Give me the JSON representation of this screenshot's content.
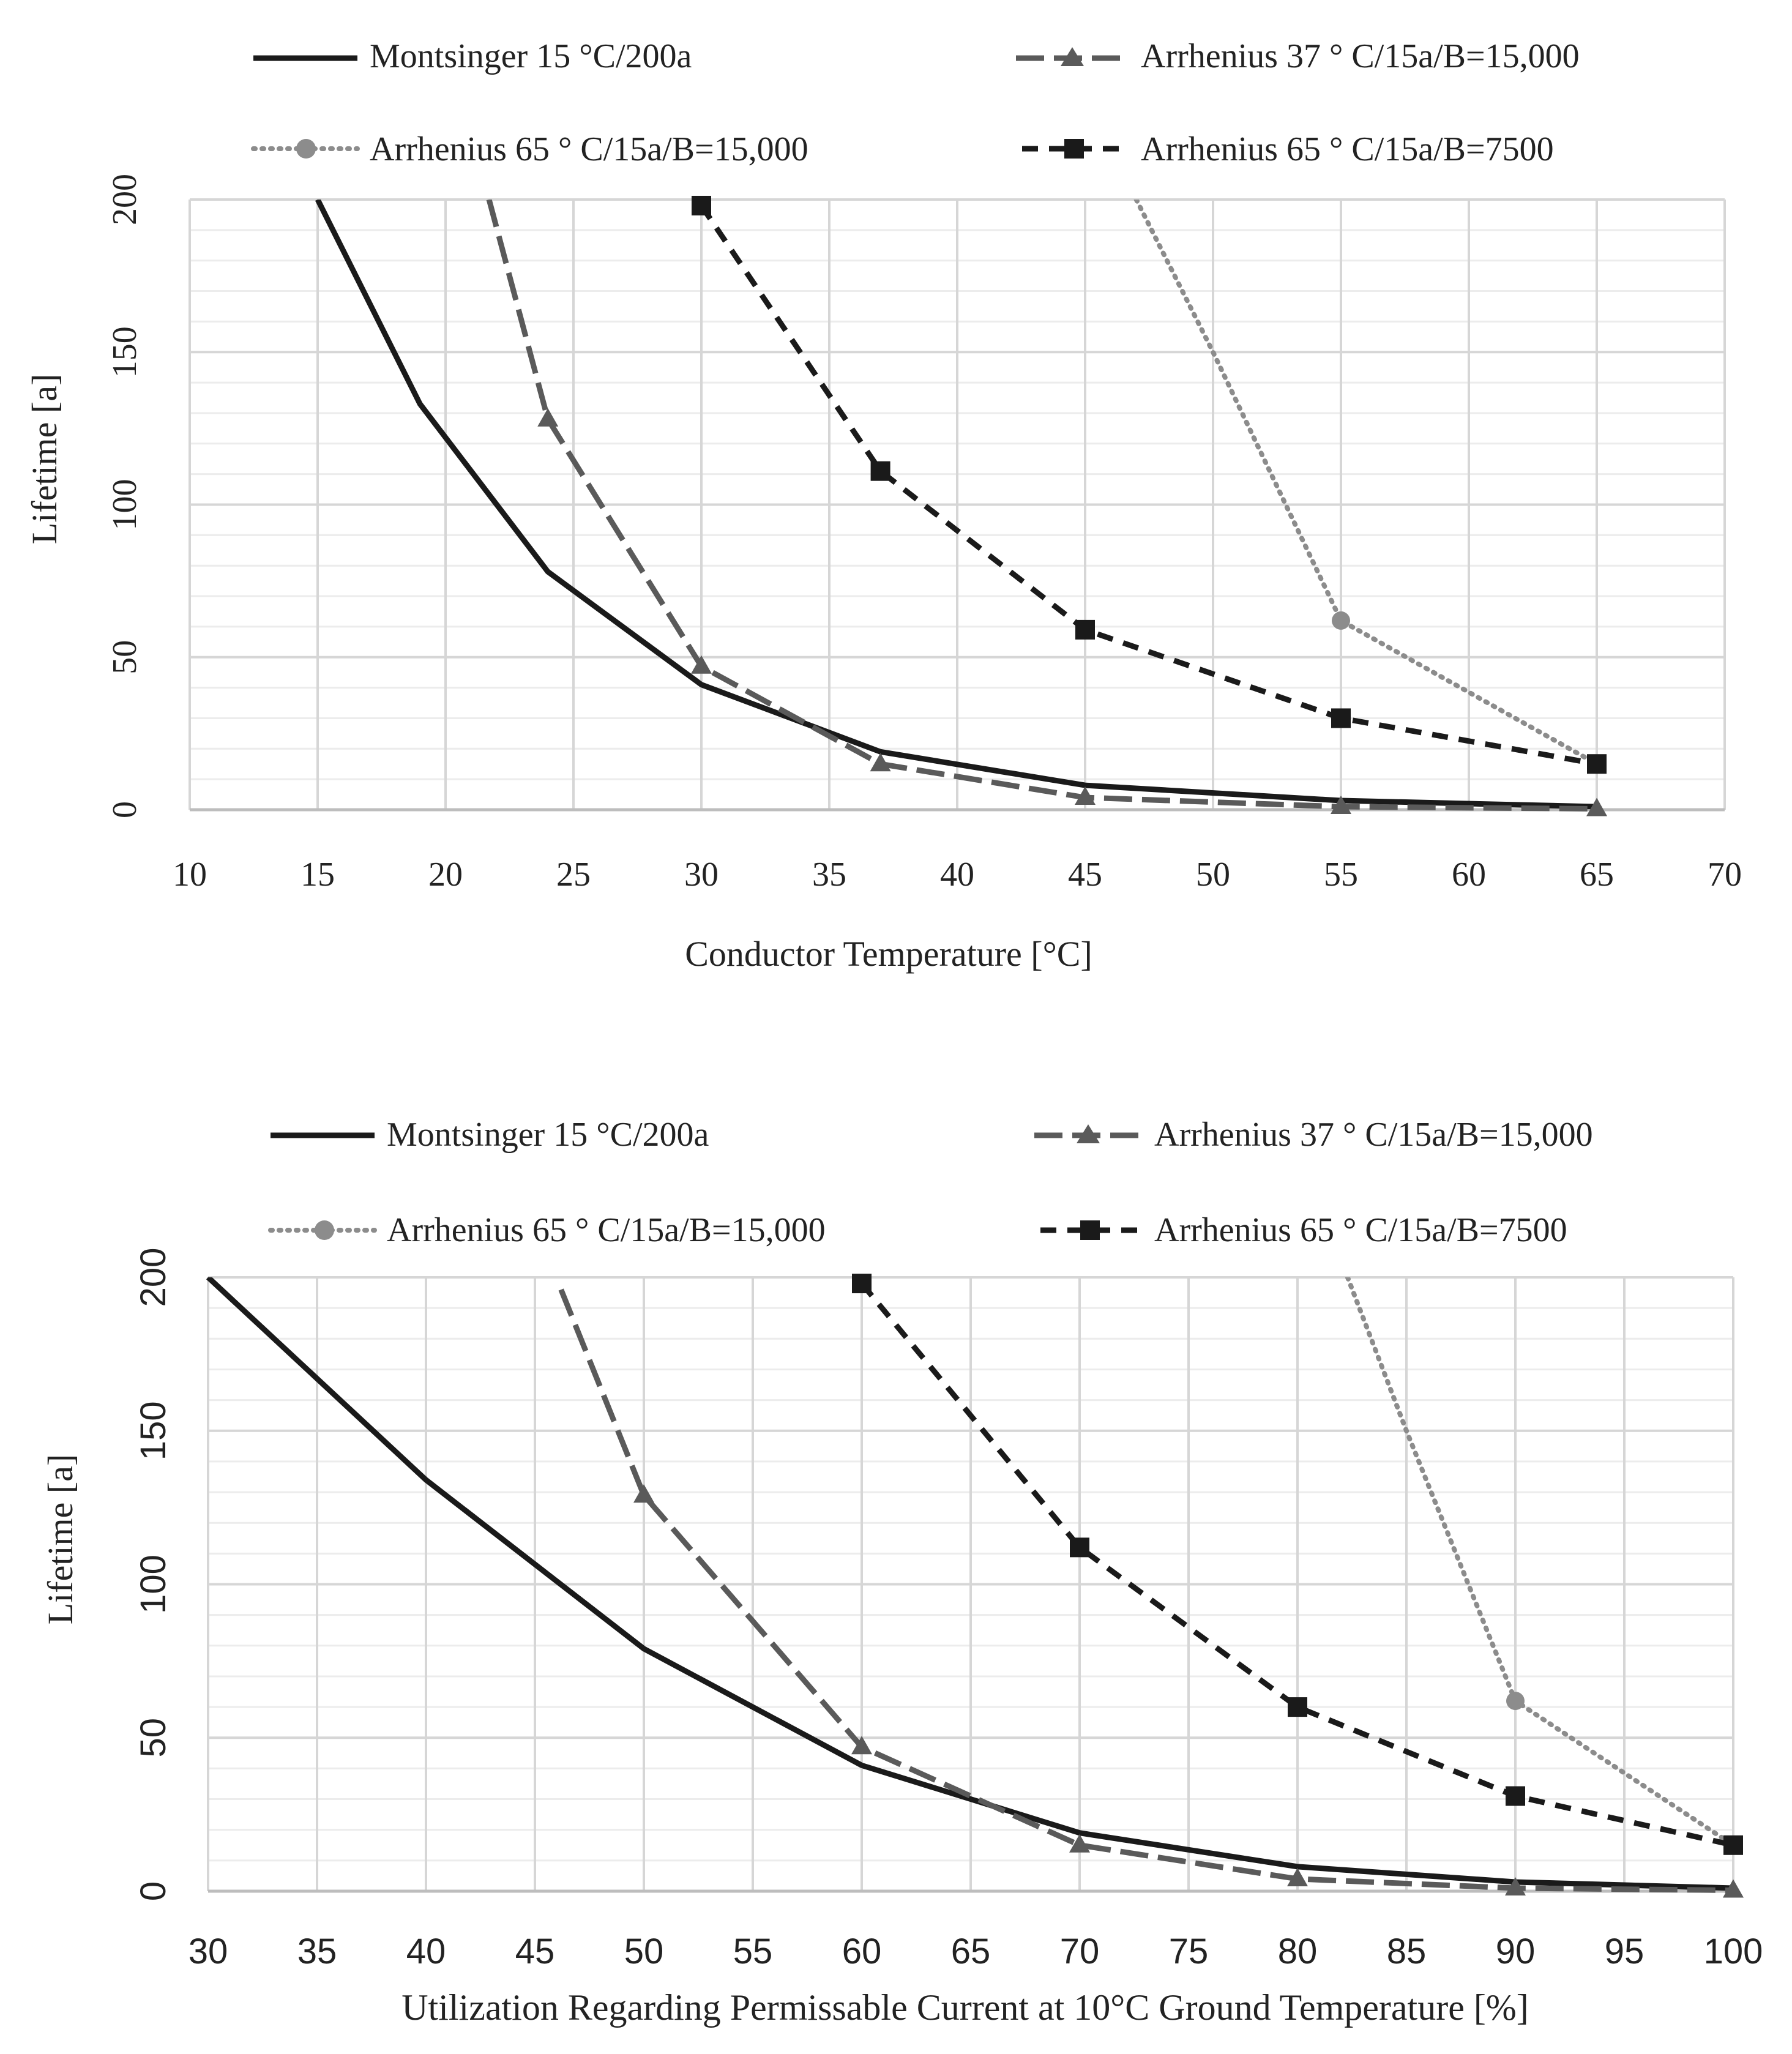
{
  "chart_data": [
    {
      "type": "line",
      "title": "",
      "xlabel": "Conductor Temperature [°C]",
      "ylabel": "Lifetime [a]",
      "xlim": [
        10,
        70
      ],
      "ylim": [
        0,
        200
      ],
      "xticks": [
        10,
        15,
        20,
        25,
        30,
        35,
        40,
        45,
        50,
        55,
        60,
        65,
        70
      ],
      "yticks": [
        0,
        50,
        100,
        150,
        200
      ],
      "xminor": 5,
      "yminor": 10,
      "tick_font": "serif",
      "legend_position": "top",
      "series": [
        {
          "name": "Montsinger 15 °C/200a",
          "style": "solid",
          "color": "#1a1a1a",
          "marker": "none",
          "x": [
            15,
            19,
            24,
            30,
            37,
            45,
            55,
            65
          ],
          "y": [
            200,
            133,
            78,
            41,
            19,
            8,
            3,
            1
          ]
        },
        {
          "name": "Arrhenius 37 ° C/15a/B=15,000",
          "style": "longdash",
          "color": "#5a5a5a",
          "marker": "triangle",
          "x": [
            21.7,
            24,
            30,
            37,
            45,
            55,
            65
          ],
          "y": [
            200,
            128,
            47,
            15,
            4,
            1,
            0.3
          ]
        },
        {
          "name": "Arrhenius 65 ° C/15a/B=15,000",
          "style": "dotted",
          "color": "#8c8c8c",
          "marker": "circle",
          "x": [
            47,
            50,
            55,
            65
          ],
          "y": [
            200,
            150,
            62,
            15
          ]
        },
        {
          "name": "Arrhenius 65 ° C/15a/B=7500",
          "style": "dashed",
          "color": "#1a1a1a",
          "marker": "square",
          "x": [
            30,
            37,
            45,
            55,
            65
          ],
          "y": [
            198,
            111,
            59,
            30,
            15
          ]
        }
      ]
    },
    {
      "type": "line",
      "title": "",
      "xlabel": "Utilization Regarding Permissable Current at 10°C Ground Temperature [%]",
      "ylabel": "Lifetime [a]",
      "xlim": [
        30,
        100
      ],
      "ylim": [
        0,
        200
      ],
      "xticks": [
        30,
        35,
        40,
        45,
        50,
        55,
        60,
        65,
        70,
        75,
        80,
        85,
        90,
        95,
        100
      ],
      "yticks": [
        0,
        50,
        100,
        150,
        200
      ],
      "xminor": 5,
      "yminor": 10,
      "tick_font": "sans",
      "legend_position": "top",
      "series": [
        {
          "name": "Montsinger 15 °C/200a",
          "style": "solid",
          "color": "#1a1a1a",
          "marker": "none",
          "x": [
            30,
            40,
            50,
            60,
            70,
            80,
            90,
            100
          ],
          "y": [
            200,
            134,
            79,
            41,
            19,
            8,
            3,
            1
          ]
        },
        {
          "name": "Arrhenius 37 ° C/15a/B=15,000",
          "style": "longdash",
          "color": "#5a5a5a",
          "marker": "triangle",
          "x": [
            46.2,
            50,
            60,
            70,
            80,
            90,
            100
          ],
          "y": [
            196,
            129,
            47,
            15,
            4,
            1,
            0.3
          ]
        },
        {
          "name": "Arrhenius 65 ° C/15a/B=15,000",
          "style": "dotted",
          "color": "#8c8c8c",
          "marker": "circle",
          "x": [
            82.3,
            85,
            90,
            100
          ],
          "y": [
            200,
            150,
            62,
            15
          ]
        },
        {
          "name": "Arrhenius 65 ° C/15a/B=7500",
          "style": "dashed",
          "color": "#1a1a1a",
          "marker": "square",
          "x": [
            60,
            70,
            80,
            90,
            100
          ],
          "y": [
            198,
            112,
            60,
            31,
            15
          ]
        }
      ]
    }
  ]
}
